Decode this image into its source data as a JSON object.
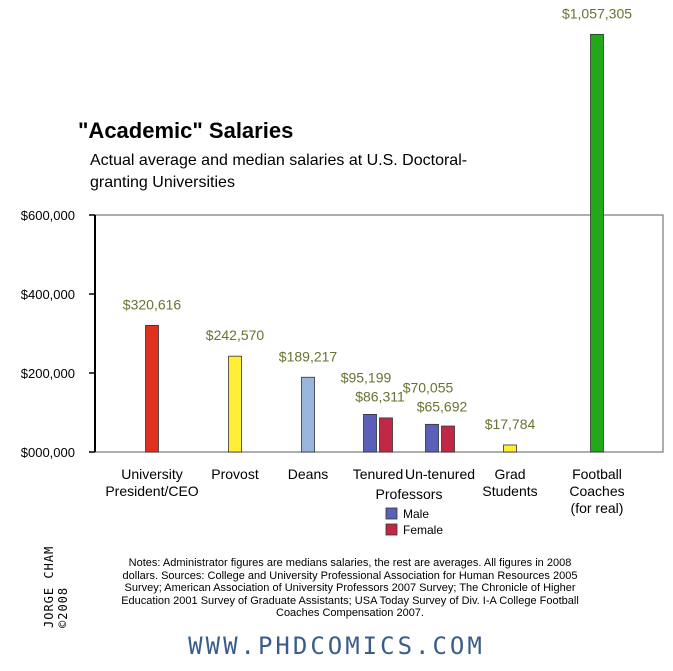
{
  "chart_data": {
    "type": "bar",
    "title": "\"Academic\" Salaries",
    "subtitle": "Actual average and median salaries at U.S. Doctoral-granting Universities",
    "ylim": [
      0,
      600000
    ],
    "y_ticks": [
      {
        "value": 600000,
        "label": "$600,000"
      },
      {
        "value": 400000,
        "label": "$400,000"
      },
      {
        "value": 200000,
        "label": "$200,000"
      },
      {
        "value": 0,
        "label": "$000,000"
      }
    ],
    "categories": [
      {
        "label": [
          "University",
          "President/CEO"
        ],
        "bars": [
          {
            "value": 320616,
            "label": "$320,616",
            "color": "#e03020"
          }
        ]
      },
      {
        "label": [
          "Provost"
        ],
        "bars": [
          {
            "value": 242570,
            "label": "$242,570",
            "color": "#ffee33"
          }
        ]
      },
      {
        "label": [
          "Deans"
        ],
        "bars": [
          {
            "value": 189217,
            "label": "$189,217",
            "color": "#99b4dd"
          }
        ]
      },
      {
        "label": [
          "Tenured"
        ],
        "bars": [
          {
            "value": 95199,
            "label": "$95,199",
            "color": "#5a5fb8",
            "series": "Male"
          },
          {
            "value": 86311,
            "label": "$86,311",
            "color": "#c02845",
            "series": "Female"
          }
        ]
      },
      {
        "label": [
          "Un-tenured"
        ],
        "bars": [
          {
            "value": 70055,
            "label": "$70,055",
            "color": "#5a5fb8",
            "series": "Male"
          },
          {
            "value": 65692,
            "label": "$65,692",
            "color": "#c02845",
            "series": "Female"
          }
        ]
      },
      {
        "label": [
          "Grad",
          "Students"
        ],
        "bars": [
          {
            "value": 17784,
            "label": "$17,784",
            "color": "#ffee33"
          }
        ]
      },
      {
        "label": [
          "Football",
          "Coaches",
          "(for real)"
        ],
        "bars": [
          {
            "value": 1057305,
            "label": "$1,057,305",
            "color": "#22a818"
          }
        ]
      }
    ],
    "shared_label": "Professors",
    "legend": [
      {
        "name": "Male",
        "color": "#5a5fb8"
      },
      {
        "name": "Female",
        "color": "#c02845"
      }
    ],
    "value_label_color": "#6b7230",
    "grid": false
  },
  "notes": "Notes: Administrator figures are medians salaries, the rest are averages. All figures in 2008 dollars. Sources: College and University Professional Association for Human Resources 2005 Survey; American Association of University Professors 2007 Survey; The Chronicle of Higher Education 2001 Survey of Graduate Assistants; USA Today Survey of Div. I-A College Football Coaches Compensation 2007.",
  "author": "JORGE CHAM ©2008",
  "site": "WWW.PHDCOMICS.COM"
}
